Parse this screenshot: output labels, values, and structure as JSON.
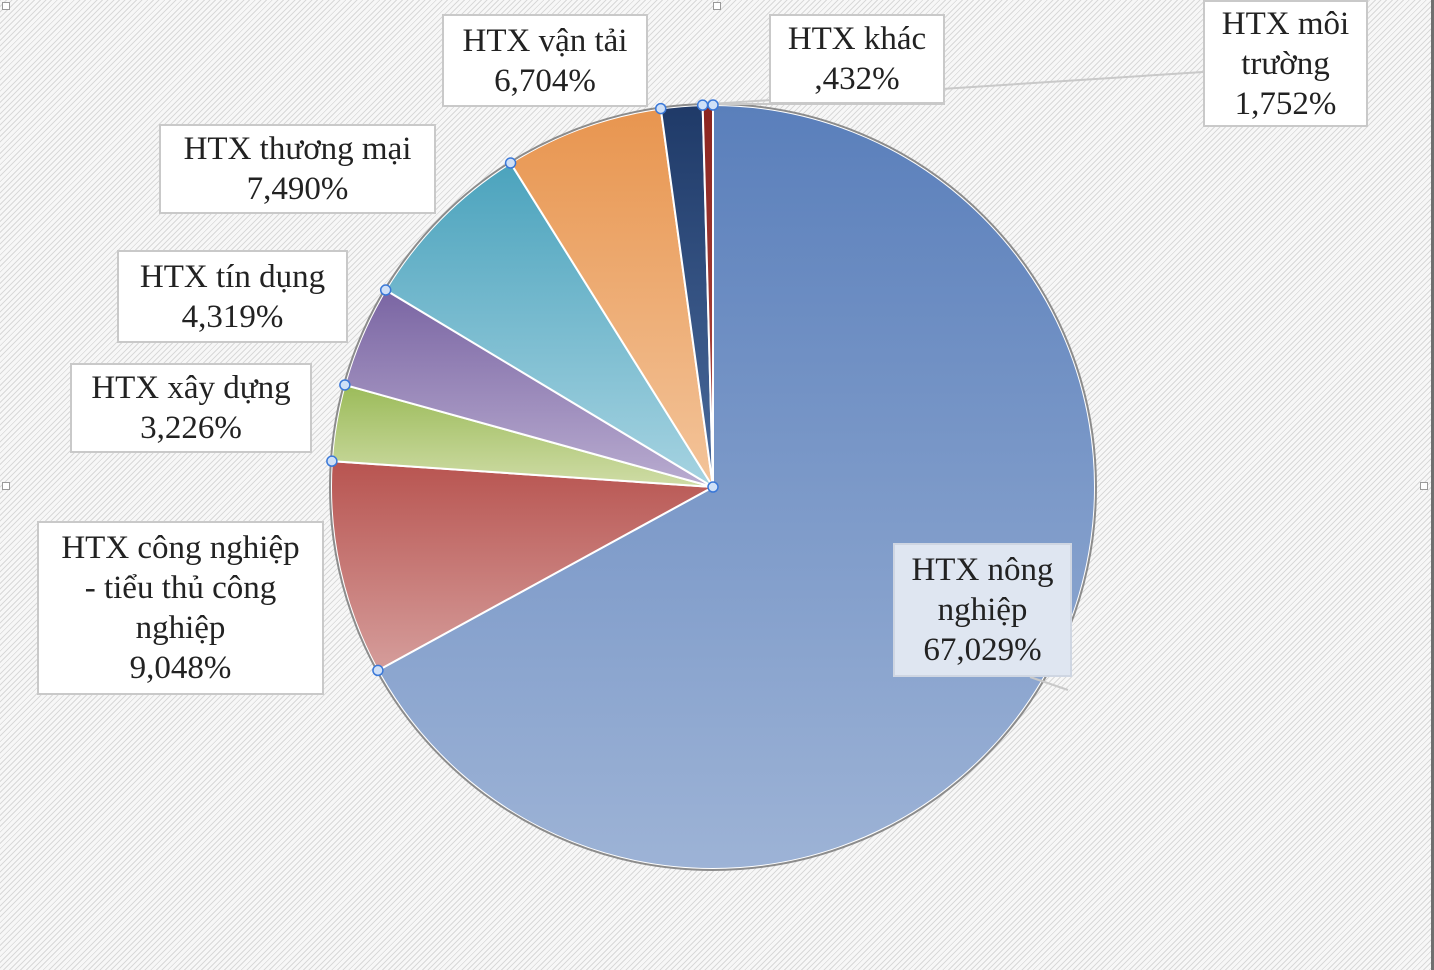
{
  "chart_data": {
    "type": "pie",
    "start_angle_deg": 0,
    "direction": "clockwise",
    "slices": [
      {
        "name": "HTX nông nghiệp",
        "value": 67.029,
        "label": "67,029%",
        "color_top": "#5a7fbb",
        "color_bottom": "#9db3d6",
        "label_selected": true
      },
      {
        "name": "HTX công nghiệp - tiểu thủ công nghiệp",
        "display_name": "HTX công nghiệp\n- tiểu thủ công\nnghiệp",
        "value": 9.048,
        "label": "9,048%",
        "color_top": "#b85450",
        "color_bottom": "#d59d9b"
      },
      {
        "name": "HTX xây dựng",
        "value": 3.226,
        "label": "3,226%",
        "color_top": "#9bbb59",
        "color_bottom": "#cfdca6"
      },
      {
        "name": "HTX tín dụng",
        "value": 4.319,
        "label": "4,319%",
        "color_top": "#7a65a3",
        "color_bottom": "#b9acd0"
      },
      {
        "name": "HTX thương mại",
        "value": 7.49,
        "label": "7,490%",
        "color_top": "#4ba3bd",
        "color_bottom": "#a6d3e1"
      },
      {
        "name": "HTX vận tải",
        "value": 6.704,
        "label": "6,704%",
        "color_top": "#e8954f",
        "color_bottom": "#f3c49a"
      },
      {
        "name": "HTX môi trường",
        "display_name": "HTX môi\ntrường",
        "value": 1.752,
        "label": "1,752%",
        "color_top": "#1f3a68",
        "color_bottom": "#4a6a9c"
      },
      {
        "name": "HTX khác",
        "value": 0.432,
        "label": ",432%",
        "color_top": "#8b2520",
        "color_bottom": "#b34a44"
      }
    ]
  }
}
